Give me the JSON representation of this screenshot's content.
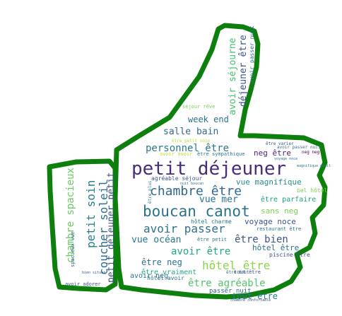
{
  "words": [
    {
      "text": "petit déjeuner",
      "color": "#472c7a"
    },
    {
      "text": "boucan canot",
      "color": "#2c728e"
    },
    {
      "text": "chambre être",
      "color": "#31688e"
    },
    {
      "text": "avoir passer",
      "color": "#2d718e"
    },
    {
      "text": "hôtel être",
      "color": "#8ad547"
    },
    {
      "text": "être agréable",
      "color": "#52c569"
    },
    {
      "text": "petit soin",
      "color": "#277f8e"
    },
    {
      "text": "coucher soleil",
      "color": "#2d708e"
    },
    {
      "text": "petit déjeuner petit",
      "color": "#3b528b"
    },
    {
      "text": "chambre spacieux",
      "color": "#65cb5e"
    },
    {
      "text": "personnel être",
      "color": "#2a788e"
    },
    {
      "text": "salle bain",
      "color": "#31688e"
    },
    {
      "text": "week end",
      "color": "#2c728e"
    },
    {
      "text": "avoir séjourne",
      "color": "#4ac16d"
    },
    {
      "text": "déjeuner être",
      "color": "#3b528b"
    },
    {
      "text": "vue mer",
      "color": "#2c728e"
    },
    {
      "text": "vue magnifique",
      "color": "#21918c"
    },
    {
      "text": "avoir être",
      "color": "#22a884"
    },
    {
      "text": "vue océan",
      "color": "#2a788e"
    },
    {
      "text": "être bien",
      "color": "#3b528b"
    },
    {
      "text": "être neg",
      "color": "#2d708e"
    },
    {
      "text": "tout être",
      "color": "#2a788e"
    },
    {
      "text": "sans neg",
      "color": "#7ad151"
    },
    {
      "text": "voyage noce",
      "color": "#3b528b"
    },
    {
      "text": "neg être",
      "color": "#482475"
    },
    {
      "text": "être parfaire",
      "color": "#1f9e89"
    },
    {
      "text": "hôtel être",
      "color": "#2c728e"
    },
    {
      "text": "avoir neg",
      "color": "#2c728e"
    },
    {
      "text": "être vraiment",
      "color": "#22a884"
    },
    {
      "text": "passer nuit",
      "color": "#31688e"
    },
    {
      "text": "avoir adorer",
      "color": "#3b528b"
    },
    {
      "text": "agréable séjour",
      "color": "#3b528b"
    },
    {
      "text": "hôtel charme",
      "color": "#2a788e"
    },
    {
      "text": "bel hôtel",
      "color": "#7ad151"
    },
    {
      "text": "avoir passer nuit",
      "color": "#31688e"
    },
    {
      "text": "séjour rêve",
      "color": "#7ad151"
    },
    {
      "text": "être petit soin",
      "color": "#bddf26"
    },
    {
      "text": "avoir avoir",
      "color": "#bddf26"
    },
    {
      "text": "être sympathique",
      "color": "#2a788e"
    },
    {
      "text": "restaurant être",
      "color": "#2c728e"
    },
    {
      "text": "hôtel avoir",
      "color": "#2c728e"
    },
    {
      "text": "piscine être",
      "color": "#3b528b"
    },
    {
      "text": "être varier",
      "color": "#3b528b"
    },
    {
      "text": "magnifique petit",
      "color": "#2a788e"
    },
    {
      "text": "voyage noce",
      "color": "#2c728e"
    },
    {
      "text": "être petit",
      "color": "#2a788e"
    },
    {
      "text": "tout être",
      "color": "#3b528b"
    },
    {
      "text": "nuit boucan",
      "color": "#2c728e"
    },
    {
      "text": "spacieux vue",
      "color": "#31688e"
    },
    {
      "text": "chambre confortable",
      "color": "#3b528b"
    },
    {
      "text": "neg neg",
      "color": "#440154"
    },
    {
      "text": "être plus",
      "color": "#2a788e"
    },
    {
      "text": "être tout",
      "color": "#31688e"
    },
    {
      "text": "bien situer",
      "color": "#3b528b"
    }
  ],
  "shape": {
    "outline_color": "#0d7f0d",
    "fill_color": "#ffffff"
  }
}
